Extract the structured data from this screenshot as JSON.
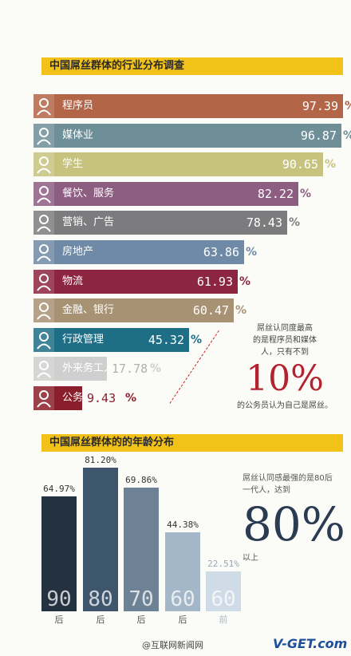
{
  "section1": {
    "title": "中国屌丝群体的行业分布调查"
  },
  "section2": {
    "title": "中国屌丝群体的的年龄分布"
  },
  "chart_data": [
    {
      "type": "bar",
      "orientation": "horizontal",
      "title": "中国屌丝群体的行业分布调查",
      "categories": [
        "程序员",
        "媒体业",
        "学生",
        "餐饮、服务",
        "营销、广告",
        "房地产",
        "物流",
        "金融、银行",
        "行政管理",
        "外来务工人员",
        "公务员"
      ],
      "values": [
        97.39,
        96.87,
        90.65,
        82.22,
        78.43,
        63.86,
        61.93,
        60.47,
        45.32,
        17.78,
        9.43
      ],
      "value_labels": [
        "97.39",
        "96.87",
        "90.65",
        "82.22",
        "78.43",
        "63.86",
        "61.93",
        "60.47",
        "45.32",
        "17.78",
        "9.43"
      ],
      "unit": "%",
      "colors": [
        "#b36548",
        "#6e8f98",
        "#c7c37f",
        "#8d5d82",
        "#7c7c7e",
        "#6e8aa6",
        "#8b2540",
        "#a89274",
        "#1e6e86",
        "#cfcfcf",
        "#8b1e2b"
      ],
      "xlim": [
        0,
        100
      ]
    },
    {
      "type": "bar",
      "title": "中国屌丝群体的的年龄分布",
      "categories": [
        "90后",
        "80后",
        "70后",
        "60后",
        "60前"
      ],
      "decades": [
        "90",
        "80",
        "70",
        "60",
        "60"
      ],
      "suffixes": [
        "后",
        "后",
        "后",
        "后",
        "前"
      ],
      "values": [
        64.97,
        81.2,
        69.86,
        44.38,
        22.51
      ],
      "value_labels": [
        "64.97%",
        "81.20%",
        "69.86%",
        "44.38%",
        "22.51%"
      ],
      "colors": [
        "#243140",
        "#3d566b",
        "#6e8295",
        "#a4b7c8",
        "#cfdbe6"
      ],
      "ylim": [
        0,
        100
      ]
    }
  ],
  "note1": {
    "line1": "屌丝认同度最高",
    "line2": "的是程序员和媒体",
    "line3": "人，只有不到",
    "big": "10%",
    "line4": "的公务员认为自己是屌丝。"
  },
  "note2": {
    "line1": "屌丝认同感最强的是80后",
    "line2": "一代人，达到",
    "big": "80%",
    "line3": "以上"
  },
  "footer": {
    "source": "@互联网新闻网",
    "brand": "V-GET.com"
  }
}
